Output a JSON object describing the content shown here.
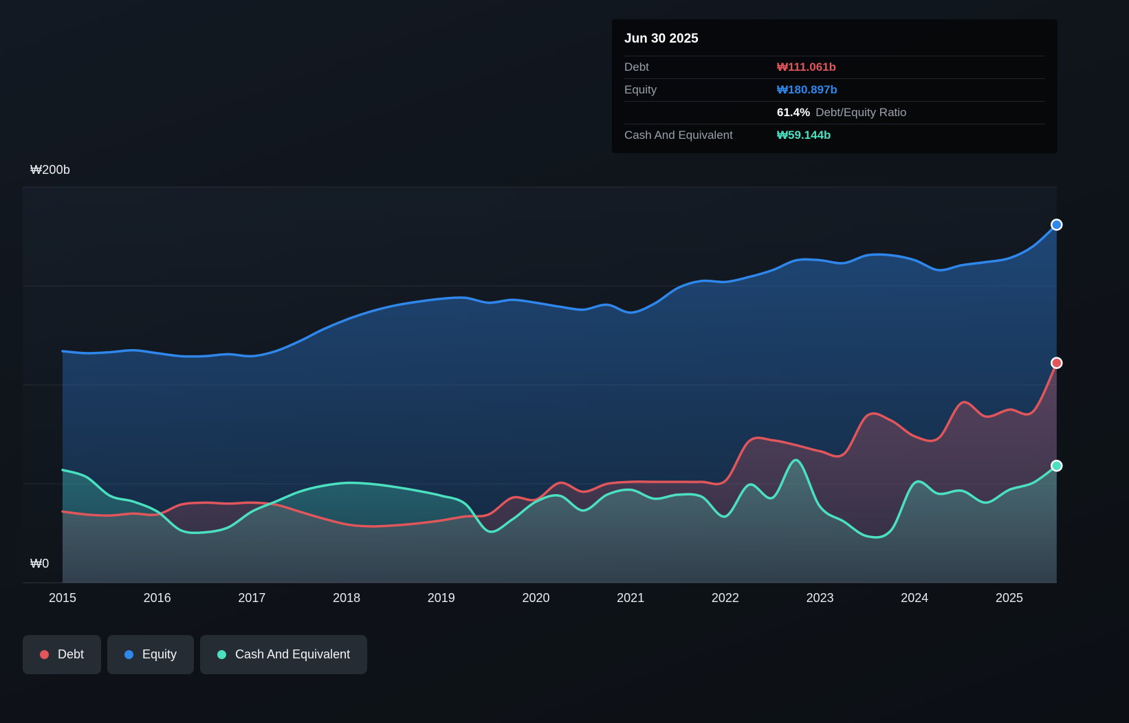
{
  "tooltip": {
    "date": "Jun 30 2025",
    "debt_label": "Debt",
    "debt_value": "₩111.061b",
    "equity_label": "Equity",
    "equity_value": "₩180.897b",
    "ratio_value": "61.4%",
    "ratio_label": "Debt/Equity Ratio",
    "cash_label": "Cash And Equivalent",
    "cash_value": "₩59.144b"
  },
  "axis": {
    "y_top_label": "₩200b",
    "y_zero_label": "₩0"
  },
  "chart_data": {
    "type": "area",
    "title": "",
    "xlabel": "",
    "ylabel": "",
    "y_unit": "₩ billions",
    "x_range": [
      2015,
      2025.5
    ],
    "y_range": [
      0,
      200
    ],
    "y_gridlines": [
      0,
      50,
      100,
      150,
      200
    ],
    "y_tick_labels": {
      "0": "₩0",
      "200": "₩200b"
    },
    "x_ticks": [
      2015,
      2016,
      2017,
      2018,
      2019,
      2020,
      2021,
      2022,
      2023,
      2024,
      2025
    ],
    "grid": true,
    "legend_position": "bottom-left",
    "x": [
      2015,
      2015.25,
      2015.5,
      2015.75,
      2016,
      2016.25,
      2016.5,
      2016.75,
      2017,
      2017.25,
      2017.5,
      2017.75,
      2018,
      2018.25,
      2018.5,
      2018.75,
      2019,
      2019.25,
      2019.5,
      2019.75,
      2020,
      2020.25,
      2020.5,
      2020.75,
      2021,
      2021.25,
      2021.5,
      2021.75,
      2022,
      2022.25,
      2022.5,
      2022.75,
      2023,
      2023.25,
      2023.5,
      2023.75,
      2024,
      2024.25,
      2024.5,
      2024.75,
      2025,
      2025.25,
      2025.5
    ],
    "series": [
      {
        "name": "Debt",
        "color": "#e0565b",
        "final_value_label": "₩111.061b",
        "values": [
          36,
          34.5,
          34,
          35,
          34.5,
          39.5,
          40.5,
          40,
          40.5,
          39.5,
          36,
          32.5,
          29.5,
          28.5,
          29,
          30,
          31.5,
          33.5,
          34.5,
          43,
          42,
          50.5,
          46,
          50,
          51,
          51,
          51,
          51,
          51.5,
          71.5,
          72,
          69.5,
          66.5,
          65,
          84.5,
          82,
          74,
          73,
          91,
          84,
          87.5,
          86.5,
          111.061
        ]
      },
      {
        "name": "Equity",
        "color": "#2f86eb",
        "final_value_label": "₩180.897b",
        "values": [
          117,
          116,
          116.5,
          117.5,
          116,
          114.5,
          114.5,
          115.5,
          114.5,
          117,
          122,
          128,
          133,
          137,
          140,
          142,
          143.5,
          144,
          141.5,
          143,
          141.5,
          139.5,
          138,
          140.5,
          136.5,
          141,
          149,
          152.5,
          152,
          154.5,
          158,
          163,
          163,
          161.5,
          165.5,
          165.5,
          163,
          158,
          160.5,
          162,
          164,
          170,
          180.897
        ]
      },
      {
        "name": "Cash And Equivalent",
        "color": "#4be0bf",
        "final_value_label": "₩59.144b",
        "values": [
          57,
          53.5,
          44,
          41,
          36,
          26.5,
          25.5,
          28,
          36,
          41,
          46,
          49,
          50.5,
          50,
          48.5,
          46.5,
          44,
          40,
          26,
          32,
          41,
          44,
          36.5,
          44.5,
          47,
          42.5,
          44.5,
          43.5,
          33.5,
          49.5,
          43,
          62,
          38.5,
          31,
          23.5,
          26.5,
          50.5,
          45,
          46.5,
          40.5,
          47,
          50.5,
          59.144
        ]
      }
    ]
  }
}
